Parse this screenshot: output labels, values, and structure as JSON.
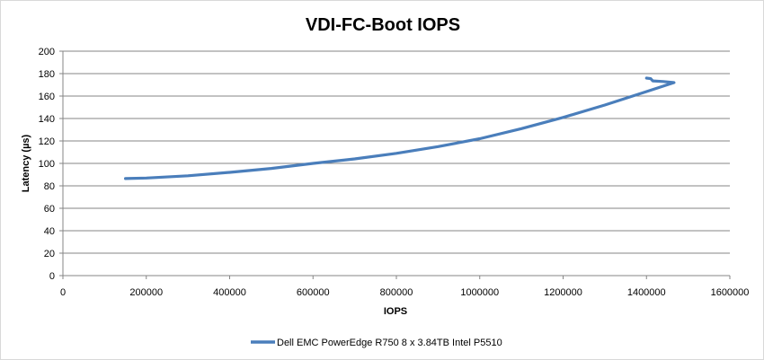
{
  "chart_data": {
    "type": "line",
    "title": "VDI-FC-Boot IOPS",
    "xlabel": "IOPS",
    "ylabel": "Latency (µs)",
    "xlim": [
      0,
      1600000
    ],
    "ylim": [
      0,
      200
    ],
    "xticks": [
      0,
      200000,
      400000,
      600000,
      800000,
      1000000,
      1200000,
      1400000,
      1600000
    ],
    "yticks": [
      0,
      20,
      40,
      60,
      80,
      100,
      120,
      140,
      160,
      180,
      200
    ],
    "grid": "horizontal",
    "legend_position": "bottom",
    "series": [
      {
        "name": "Dell EMC PowerEdge R750 8 x 3.84TB Intel P5510",
        "color": "#4a7ebb",
        "points": [
          [
            150000,
            86.5
          ],
          [
            200000,
            87
          ],
          [
            300000,
            89
          ],
          [
            400000,
            92
          ],
          [
            500000,
            95.5
          ],
          [
            600000,
            100
          ],
          [
            700000,
            104
          ],
          [
            800000,
            109
          ],
          [
            900000,
            115
          ],
          [
            1000000,
            122
          ],
          [
            1100000,
            131
          ],
          [
            1200000,
            141
          ],
          [
            1300000,
            152
          ],
          [
            1400000,
            164
          ],
          [
            1466000,
            172
          ],
          [
            1440000,
            173
          ],
          [
            1415000,
            173.5
          ],
          [
            1410000,
            175.5
          ],
          [
            1400000,
            176
          ]
        ]
      }
    ]
  }
}
